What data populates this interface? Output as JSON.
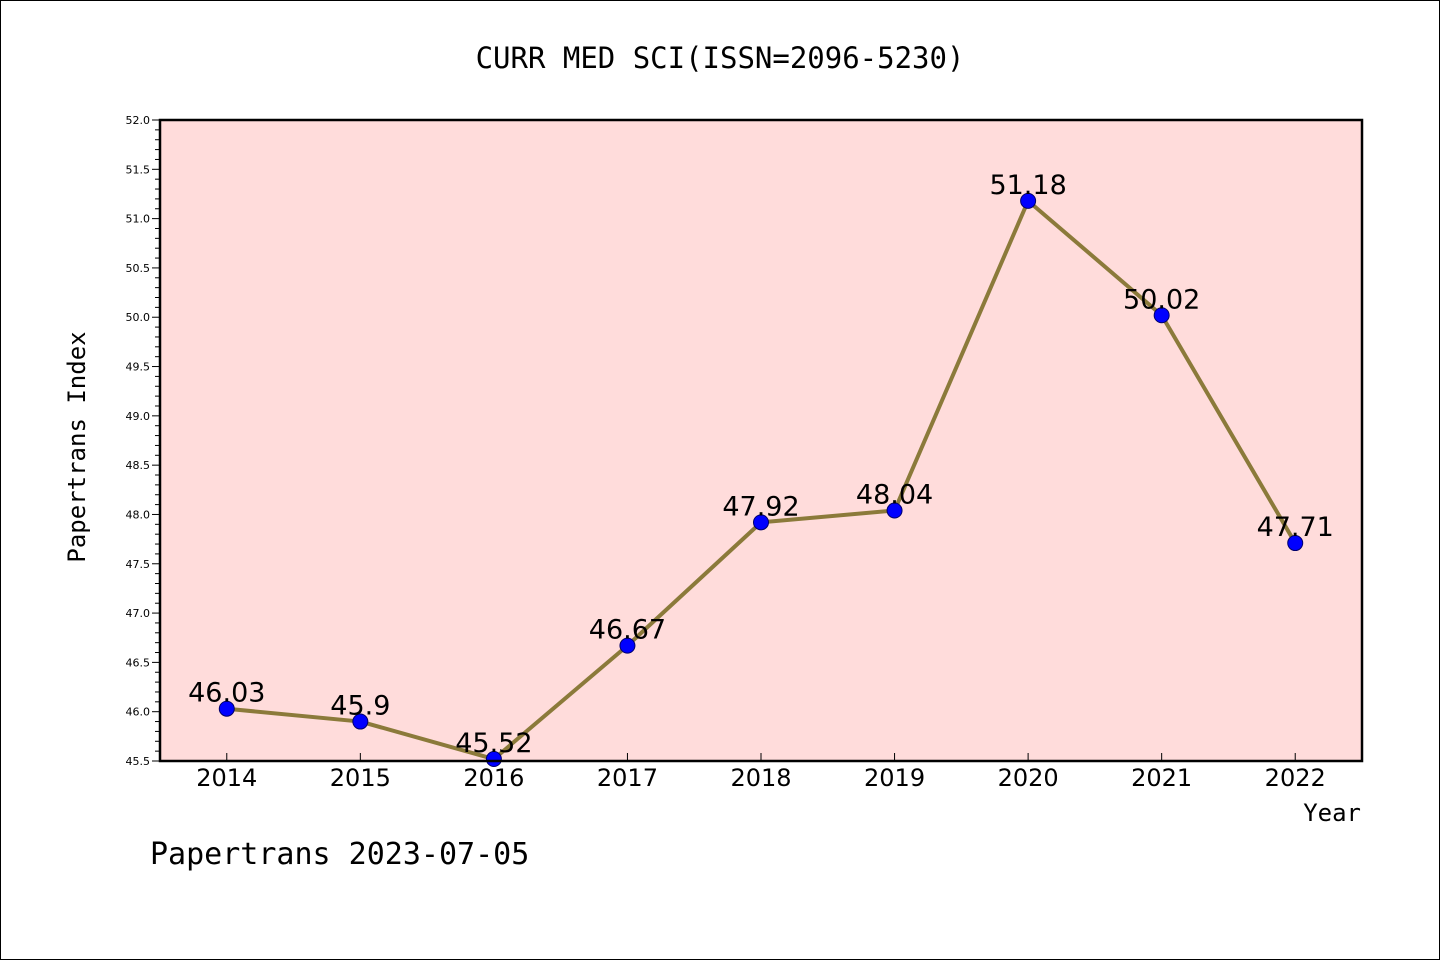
{
  "chart_data": {
    "type": "line",
    "title": "CURR MED SCI(ISSN=2096-5230)",
    "xlabel": "Year",
    "ylabel": "Papertrans Index",
    "categories": [
      "2014",
      "2015",
      "2016",
      "2017",
      "2018",
      "2019",
      "2020",
      "2021",
      "2022"
    ],
    "series": [
      {
        "values": [
          46.03,
          45.9,
          45.52,
          46.67,
          47.92,
          48.04,
          51.18,
          50.02,
          47.71
        ]
      }
    ],
    "data_labels": [
      "46.03",
      "45.9",
      "45.52",
      "46.67",
      "47.92",
      "48.04",
      "51.18",
      "50.02",
      "47.71"
    ],
    "ylim": [
      45.5,
      52.0
    ],
    "y_ticks": [
      "45.5",
      "46.0",
      "46.5",
      "47.0",
      "47.5",
      "48.0",
      "48.5",
      "49.0",
      "49.5",
      "50.0",
      "50.5",
      "51.0",
      "51.5",
      "52.0"
    ],
    "grid": false,
    "legend": "none",
    "colors": {
      "plot_background": "#ffdcdb",
      "line": "#8b7a3a",
      "marker": "#0000ff"
    },
    "footer": "Papertrans 2023-07-05"
  }
}
